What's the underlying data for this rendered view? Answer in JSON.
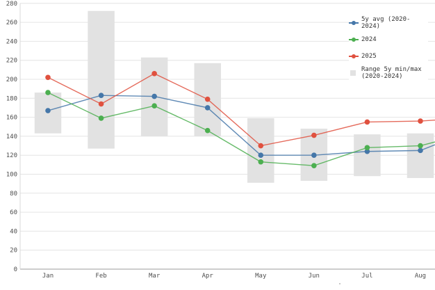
{
  "chart_data": {
    "type": "line",
    "title": "",
    "xlabel": "",
    "ylabel": "",
    "categories": [
      "Jan",
      "Feb",
      "Mar",
      "Apr",
      "May",
      "Jun",
      "Jul",
      "Aug"
    ],
    "series": [
      {
        "name": "5y avg (2020-2024)",
        "color": "#4577a9",
        "values": [
          167,
          183,
          182,
          170,
          120,
          120,
          124,
          125
        ],
        "value_at_right_crop": 131
      },
      {
        "name": "2024",
        "color": "#4caf50",
        "values": [
          186,
          159,
          172,
          146,
          113,
          109,
          128,
          130
        ],
        "value_at_right_crop": 134
      },
      {
        "name": "2025",
        "color": "#e0513f",
        "values": [
          202,
          174,
          206,
          179,
          130,
          141,
          155,
          156
        ],
        "value_at_right_crop": 157
      }
    ],
    "range_series": {
      "name": "Range 5y min/max (2020-2024)",
      "color": "#e2e2e2",
      "min": [
        143,
        127,
        140,
        140,
        91,
        93,
        98,
        96
      ],
      "max": [
        186,
        272,
        223,
        217,
        159,
        148,
        142,
        143
      ]
    },
    "y_axis": {
      "min": 0,
      "max": 280,
      "step": 20
    },
    "grid": "horizontal",
    "legend_position": "top-right"
  },
  "palette": {
    "background": "#ffffff",
    "gridline": "#e4e4e4",
    "zero_line": "#9b9b9b",
    "axis_line": "#d8d8d8",
    "tick_text": "#4d4d4d",
    "month_text": "#4d4d4d"
  }
}
